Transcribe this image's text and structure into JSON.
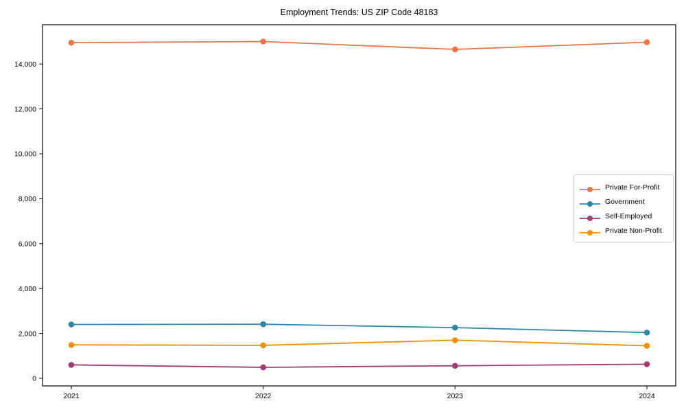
{
  "chart_data": {
    "type": "line",
    "title": "Employment Trends: US ZIP Code 48183",
    "xlabel": "",
    "ylabel": "",
    "categories": [
      "2021",
      "2022",
      "2023",
      "2024"
    ],
    "series": [
      {
        "name": "Private For-Profit",
        "color": "#E8764B",
        "values": [
          14950,
          15000,
          14650,
          14970
        ]
      },
      {
        "name": "Government",
        "color": "#2E86AB",
        "values": [
          2400,
          2410,
          2260,
          2040
        ]
      },
      {
        "name": "Self-Employed",
        "color": "#A23B72",
        "values": [
          600,
          490,
          560,
          630
        ]
      },
      {
        "name": "Private Non-Profit",
        "color": "#F18F01",
        "values": [
          1490,
          1470,
          1700,
          1450
        ]
      }
    ],
    "ylim": [
      -350,
      15750
    ],
    "yticks": {
      "values": [
        0,
        2000,
        4000,
        6000,
        8000,
        10000,
        12000,
        14000
      ],
      "labels": [
        "0",
        "2,000",
        "4,000",
        "6,000",
        "8,000",
        "10,000",
        "12,000",
        "14,000"
      ]
    },
    "grid": false,
    "legend_position": "center-right",
    "marker": "circle",
    "spine_color": "#000000",
    "background_color": "#ffffff"
  }
}
